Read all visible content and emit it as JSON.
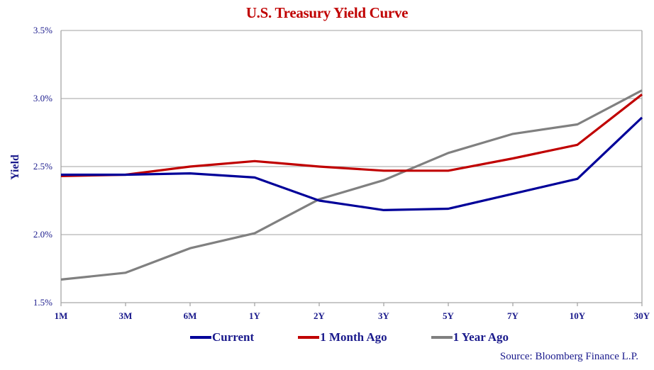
{
  "chart_data": {
    "type": "line",
    "title": "U.S. Treasury Yield Curve",
    "xlabel": "",
    "ylabel": "Yield",
    "ylim": [
      1.5,
      3.5
    ],
    "yticks": [
      1.5,
      2.0,
      2.5,
      3.0,
      3.5
    ],
    "ytick_labels": [
      "1.5%",
      "2.0%",
      "2.5%",
      "3.0%",
      "3.5%"
    ],
    "grid": true,
    "legend_position": "bottom",
    "categories": [
      "1M",
      "3M",
      "6M",
      "1Y",
      "2Y",
      "3Y",
      "5Y",
      "7Y",
      "10Y",
      "30Y"
    ],
    "series": [
      {
        "name": "Current",
        "color": "#000099",
        "values": [
          2.44,
          2.44,
          2.45,
          2.42,
          2.25,
          2.18,
          2.19,
          2.3,
          2.41,
          2.86
        ]
      },
      {
        "name": "1 Month Ago",
        "color": "#c00000",
        "values": [
          2.43,
          2.44,
          2.5,
          2.54,
          2.5,
          2.47,
          2.47,
          2.56,
          2.66,
          3.03
        ]
      },
      {
        "name": "1 Year Ago",
        "color": "#808080",
        "values": [
          1.67,
          1.72,
          1.9,
          2.01,
          2.26,
          2.4,
          2.6,
          2.74,
          2.81,
          3.06
        ]
      }
    ],
    "source": "Source: Bloomberg Finance L.P."
  }
}
